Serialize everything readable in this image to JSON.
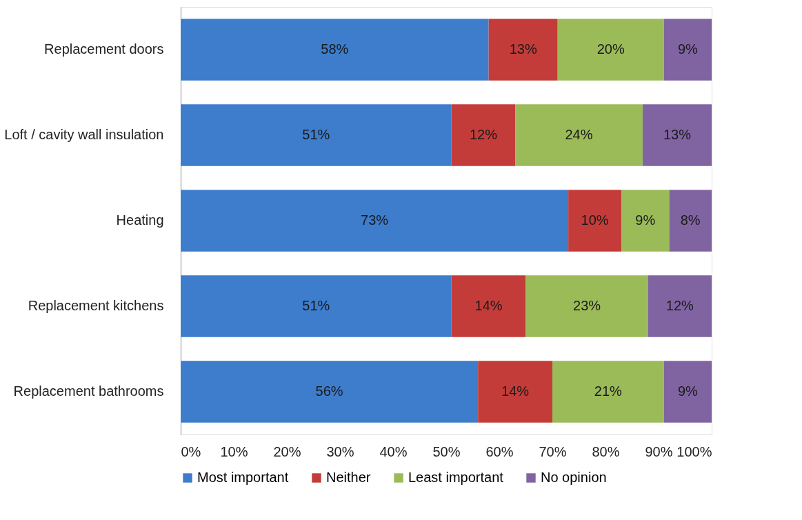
{
  "chart_data": {
    "type": "bar",
    "orientation": "horizontal",
    "stacked": true,
    "categories": [
      "Replacement doors",
      "Loft / cavity wall insulation",
      "Heating",
      "Replacement kitchens",
      "Replacement bathrooms"
    ],
    "series": [
      {
        "name": "Most important",
        "color": "#3d7dcc",
        "values": [
          58,
          51,
          73,
          51,
          56
        ],
        "value_labels": [
          "58%",
          "51%",
          "73%",
          "51%",
          "56%"
        ]
      },
      {
        "name": "Neither",
        "color": "#c43c39",
        "values": [
          13,
          12,
          10,
          14,
          14
        ],
        "value_labels": [
          "13%",
          "12%",
          "10%",
          "14%",
          "14%"
        ]
      },
      {
        "name": "Least important",
        "color": "#9bbb59",
        "values": [
          20,
          24,
          9,
          23,
          21
        ],
        "value_labels": [
          "20%",
          "24%",
          "9%",
          "23%",
          "21%"
        ]
      },
      {
        "name": "No opinion",
        "color": "#8064a2",
        "values": [
          9,
          13,
          8,
          12,
          9
        ],
        "value_labels": [
          "9%",
          "13%",
          "8%",
          "12%",
          "9%"
        ]
      }
    ],
    "xlim": [
      0,
      100
    ],
    "xticks": [
      {
        "value": 0,
        "label": "0%"
      },
      {
        "value": 10,
        "label": "10%"
      },
      {
        "value": 20,
        "label": "20%"
      },
      {
        "value": 30,
        "label": "30%"
      },
      {
        "value": 40,
        "label": "40%"
      },
      {
        "value": 50,
        "label": "50%"
      },
      {
        "value": 60,
        "label": "60%"
      },
      {
        "value": 70,
        "label": "70%"
      },
      {
        "value": 80,
        "label": "80%"
      },
      {
        "value": 90,
        "label": "90%"
      },
      {
        "value": 100,
        "label": "100%"
      }
    ],
    "grid": false,
    "legend": "bottom"
  }
}
